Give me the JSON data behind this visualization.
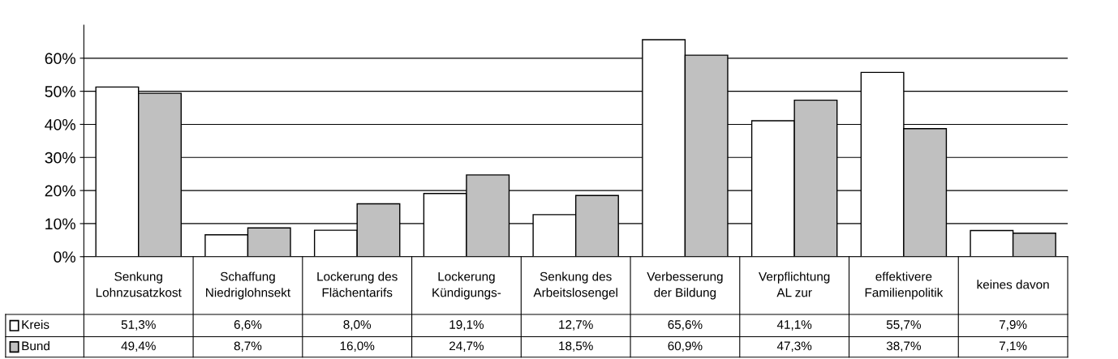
{
  "chart_data": {
    "type": "bar",
    "categories": [
      "Senkung\nLohnzusatzkost",
      "Schaffung\nNiedriglohnsekt",
      "Lockerung des\nFlächentarifs",
      "Lockerung\nKündigungs-",
      "Senkung des\nArbeitslosengel",
      "Verbesserung\nder Bildung",
      "Verpflichtung\nAL zur",
      "effektivere\nFamilienpolitik",
      "keines davon"
    ],
    "series": [
      {
        "name": "Kreis",
        "color": "#ffffff",
        "values": [
          51.3,
          6.6,
          8.0,
          19.1,
          12.7,
          65.6,
          41.1,
          55.7,
          7.9
        ],
        "value_labels": [
          "51,3%",
          "6,6%",
          "8,0%",
          "19,1%",
          "12,7%",
          "65,6%",
          "41,1%",
          "55,7%",
          "7,9%"
        ]
      },
      {
        "name": "Bund",
        "color": "#c0c0c0",
        "values": [
          49.4,
          8.7,
          16.0,
          24.7,
          18.5,
          60.9,
          47.3,
          38.7,
          7.1
        ],
        "value_labels": [
          "49,4%",
          "8,7%",
          "16,0%",
          "24,7%",
          "18,5%",
          "60,9%",
          "47,3%",
          "38,7%",
          "7,1%"
        ]
      }
    ],
    "ylim": [
      0,
      70
    ],
    "yticks": [
      {
        "value": 0,
        "label": "0%"
      },
      {
        "value": 10,
        "label": "10%"
      },
      {
        "value": 20,
        "label": "20%"
      },
      {
        "value": 30,
        "label": "30%"
      },
      {
        "value": 40,
        "label": "40%"
      },
      {
        "value": 50,
        "label": "50%"
      },
      {
        "value": 60,
        "label": "60%"
      }
    ],
    "grid": "y",
    "legend": "left"
  }
}
